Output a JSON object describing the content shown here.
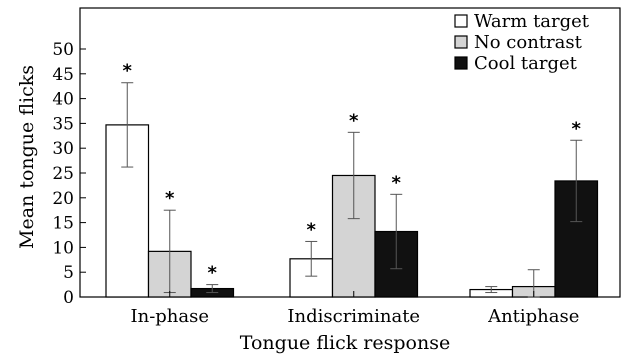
{
  "chart_data": {
    "type": "bar",
    "xlabel": "Tongue flick response",
    "ylabel": "Mean tongue flicks",
    "ylim": [
      0,
      50
    ],
    "y_ticks": [
      "0",
      "5",
      "10",
      "15",
      "20",
      "25",
      "30",
      "35",
      "40",
      "45",
      "50"
    ],
    "categories": [
      "In-phase",
      "Indiscriminate",
      "Antiphase"
    ],
    "legend_position": "top-right",
    "series": [
      {
        "name": "Warm target",
        "color": "#ffffff",
        "values": [
          34.7,
          7.7,
          1.5
        ],
        "errors": [
          8.5,
          3.5,
          0.6
        ],
        "significance": [
          "*",
          "*",
          ""
        ]
      },
      {
        "name": "No contrast",
        "color": "#d4d4d4",
        "values": [
          9.2,
          24.5,
          2.1
        ],
        "errors": [
          8.3,
          8.7,
          3.4
        ],
        "significance": [
          "*",
          "*",
          ""
        ]
      },
      {
        "name": "Cool target",
        "color": "#111111",
        "values": [
          1.7,
          13.2,
          23.4
        ],
        "errors": [
          0.8,
          7.5,
          8.2
        ],
        "significance": [
          "*",
          "*",
          "*"
        ]
      }
    ]
  }
}
